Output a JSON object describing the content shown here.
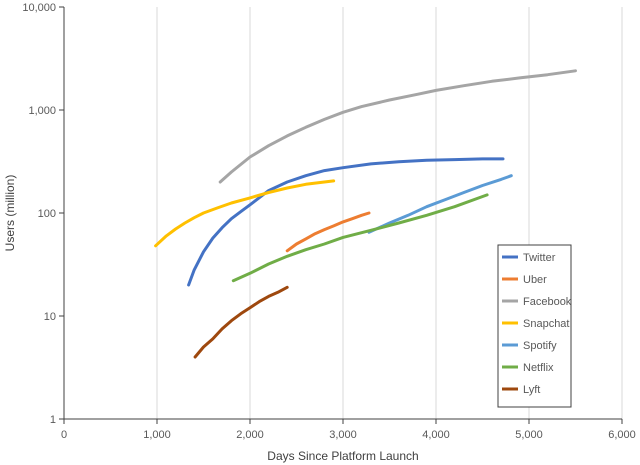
{
  "chart_data": {
    "type": "line",
    "title": "",
    "xlabel": "Days Since Platform Launch",
    "ylabel": "Users (million)",
    "xlim": [
      0,
      6000
    ],
    "ylim": [
      1,
      10000
    ],
    "yscale": "log",
    "grid": "vertical",
    "legend": "right",
    "x_ticks": [
      "0",
      "1,000",
      "2,000",
      "3,000",
      "4,000",
      "5,000",
      "6,000"
    ],
    "x_tick_values": [
      0,
      1000,
      2000,
      3000,
      4000,
      5000,
      6000
    ],
    "y_ticks": [
      "1",
      "10",
      "100",
      "1,000",
      "10,000"
    ],
    "y_tick_values": [
      1,
      10,
      100,
      1000,
      10000
    ],
    "series": [
      {
        "name": "Twitter",
        "color": "#4472c4",
        "x": [
          1340,
          1400,
          1500,
          1600,
          1700,
          1800,
          1900,
          2000,
          2200,
          2400,
          2600,
          2800,
          3000,
          3300,
          3600,
          3900,
          4200,
          4500,
          4720
        ],
        "y": [
          20,
          28,
          42,
          57,
          72,
          88,
          103,
          120,
          165,
          200,
          230,
          258,
          275,
          300,
          315,
          325,
          330,
          335,
          335
        ]
      },
      {
        "name": "Uber",
        "color": "#ed7d31",
        "x": [
          2400,
          2500,
          2600,
          2700,
          2800,
          2900,
          3000,
          3100,
          3200,
          3280
        ],
        "y": [
          43,
          50,
          56,
          63,
          69,
          75,
          82,
          88,
          95,
          100
        ]
      },
      {
        "name": "Facebook",
        "color": "#a5a5a5",
        "x": [
          1680,
          1800,
          2000,
          2200,
          2400,
          2600,
          2800,
          3000,
          3200,
          3500,
          3800,
          4000,
          4300,
          4600,
          4900,
          5200,
          5500
        ],
        "y": [
          200,
          250,
          350,
          450,
          560,
          680,
          810,
          950,
          1080,
          1250,
          1420,
          1550,
          1720,
          1900,
          2050,
          2200,
          2400
        ]
      },
      {
        "name": "Snapchat",
        "color": "#ffc000",
        "x": [
          985,
          1100,
          1200,
          1300,
          1400,
          1500,
          1650,
          1800,
          2000,
          2200,
          2400,
          2600,
          2900
        ],
        "y": [
          48,
          60,
          70,
          80,
          90,
          100,
          112,
          125,
          140,
          158,
          175,
          190,
          205
        ]
      },
      {
        "name": "Spotify",
        "color": "#5b9bd5",
        "x": [
          3280,
          3500,
          3700,
          3900,
          4100,
          4300,
          4500,
          4700,
          4810
        ],
        "y": [
          65,
          80,
          95,
          115,
          135,
          158,
          185,
          212,
          230
        ]
      },
      {
        "name": "Netflix",
        "color": "#70ad47",
        "x": [
          1820,
          2000,
          2200,
          2400,
          2600,
          2800,
          3000,
          3300,
          3600,
          3900,
          4200,
          4550
        ],
        "y": [
          22,
          26,
          32,
          38,
          44,
          50,
          58,
          68,
          80,
          95,
          115,
          150
        ]
      },
      {
        "name": "Lyft",
        "color": "#9e480e",
        "x": [
          1410,
          1500,
          1600,
          1700,
          1800,
          1900,
          2000,
          2100,
          2200,
          2300,
          2400
        ],
        "y": [
          4,
          5,
          6,
          7.5,
          9,
          10.5,
          12,
          13.8,
          15.5,
          17,
          19
        ]
      }
    ]
  }
}
